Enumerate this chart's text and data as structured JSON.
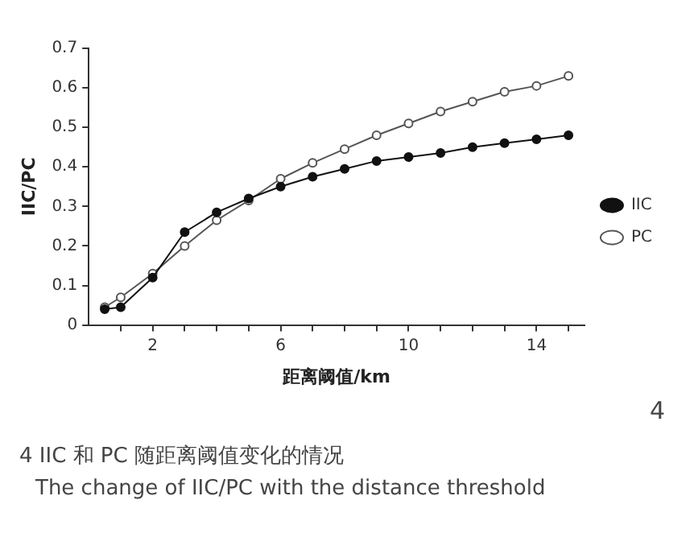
{
  "chart_data": {
    "type": "line",
    "xlabel": "距离阈值/km",
    "ylabel": "IIC/PC",
    "x": [
      0.5,
      1,
      2,
      3,
      4,
      5,
      6,
      7,
      8,
      9,
      10,
      11,
      12,
      13,
      14,
      15
    ],
    "series": [
      {
        "name": "IIC",
        "color": "#111111",
        "marker": "circle",
        "values": [
          0.04,
          0.045,
          0.12,
          0.235,
          0.285,
          0.32,
          0.35,
          0.375,
          0.395,
          0.415,
          0.425,
          0.435,
          0.45,
          0.46,
          0.47,
          0.48
        ]
      },
      {
        "name": "PC",
        "color": "#555555",
        "marker": "circle",
        "values": [
          0.045,
          0.07,
          0.13,
          0.2,
          0.265,
          0.315,
          0.37,
          0.41,
          0.445,
          0.48,
          0.51,
          0.54,
          0.565,
          0.59,
          0.605,
          0.63
        ]
      }
    ],
    "xlim": [
      0,
      15.5
    ],
    "xticks": [
      {
        "value": 1,
        "label": null
      },
      2,
      {
        "value": 3,
        "label": null
      },
      {
        "value": 4,
        "label": null
      },
      {
        "value": 5,
        "label": null
      },
      6,
      {
        "value": 7,
        "label": null
      },
      {
        "value": 8,
        "label": null
      },
      {
        "value": 9,
        "label": null
      },
      10,
      {
        "value": 11,
        "label": null
      },
      {
        "value": 12,
        "label": null
      },
      {
        "value": 13,
        "label": null
      },
      14,
      {
        "value": 15,
        "label": null
      }
    ],
    "ylim": [
      0,
      0.7
    ],
    "yticks": [
      0,
      0.1,
      0.2,
      0.3,
      0.4,
      0.5,
      0.6,
      0.7
    ],
    "grid": false,
    "legend": "right",
    "line_style": "solid",
    "annotations": [
      "4",
      "4 IIC 和 PC 随距离阈值变化的情况",
      "The change of IIC/PC with the distance threshold"
    ]
  }
}
